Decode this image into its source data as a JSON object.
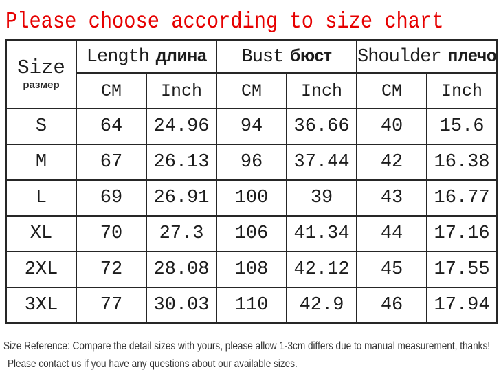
{
  "title": "Please choose according to size chart",
  "colors": {
    "title_red": "#e60000",
    "border": "#262626",
    "text": "#1c1c1c",
    "note_text": "#333333"
  },
  "chart_data": {
    "type": "table",
    "title": "Please choose according to size chart",
    "size_column": {
      "en": "Size",
      "ru": "размер"
    },
    "column_groups": [
      {
        "en": "Length",
        "ru": "длина"
      },
      {
        "en": "Bust",
        "ru": "бюст"
      },
      {
        "en": "Shoulder",
        "ru": "плечо"
      }
    ],
    "units": [
      "CM",
      "Inch",
      "CM",
      "Inch",
      "CM",
      "Inch"
    ],
    "rows": [
      {
        "size": "S",
        "length_cm": 64,
        "length_inch": 24.96,
        "bust_cm": 94,
        "bust_inch": 36.66,
        "shoulder_cm": 40,
        "shoulder_inch": 15.6
      },
      {
        "size": "M",
        "length_cm": 67,
        "length_inch": 26.13,
        "bust_cm": 96,
        "bust_inch": 37.44,
        "shoulder_cm": 42,
        "shoulder_inch": 16.38
      },
      {
        "size": "L",
        "length_cm": 69,
        "length_inch": 26.91,
        "bust_cm": 100,
        "bust_inch": 39,
        "shoulder_cm": 43,
        "shoulder_inch": 16.77
      },
      {
        "size": "XL",
        "length_cm": 70,
        "length_inch": 27.3,
        "bust_cm": 106,
        "bust_inch": 41.34,
        "shoulder_cm": 44,
        "shoulder_inch": 17.16
      },
      {
        "size": "2XL",
        "length_cm": 72,
        "length_inch": 28.08,
        "bust_cm": 108,
        "bust_inch": 42.12,
        "shoulder_cm": 45,
        "shoulder_inch": 17.55
      },
      {
        "size": "3XL",
        "length_cm": 77,
        "length_inch": 30.03,
        "bust_cm": 110,
        "bust_inch": 42.9,
        "shoulder_cm": 46,
        "shoulder_inch": 17.94
      }
    ]
  },
  "footer": {
    "line1": "Size Reference: Compare the detail sizes with yours, please allow 1-3cm differs due to manual measurement, thanks!",
    "line2": "Please contact us if you have any questions about our available sizes."
  }
}
